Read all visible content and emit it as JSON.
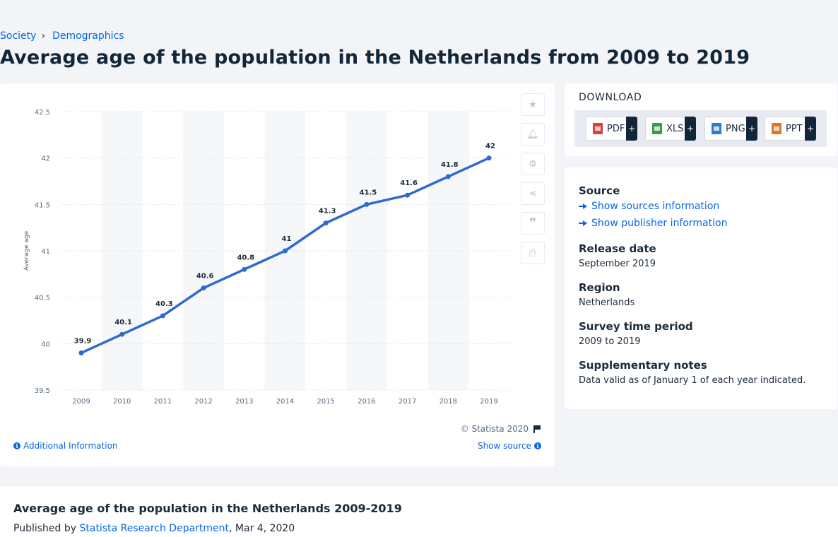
{
  "breadcrumb": {
    "items": [
      "Society",
      "Demographics"
    ],
    "separator": "›"
  },
  "page_title": "Average age of the population in the Netherlands from 2009 to 2019",
  "chart_data": {
    "type": "line",
    "title": "",
    "xlabel": "",
    "ylabel": "Average age",
    "x": [
      "2009",
      "2010",
      "2011",
      "2012",
      "2013",
      "2014",
      "2015",
      "2016",
      "2017",
      "2018",
      "2019"
    ],
    "series": [
      {
        "name": "",
        "values": [
          39.9,
          40.1,
          40.3,
          40.6,
          40.8,
          41,
          41.3,
          41.5,
          41.6,
          41.8,
          42
        ],
        "labels": [
          "39.9",
          "40.1",
          "40.3",
          "40.6",
          "40.8",
          "41",
          "41.3",
          "41.5",
          "41.6",
          "41.8",
          "42"
        ]
      }
    ],
    "ylim": [
      39.5,
      42.5
    ],
    "yticks": [
      39.5,
      40,
      40.5,
      41,
      41.5,
      42,
      42.5
    ],
    "ytick_labels": [
      "39.5",
      "40",
      "40.5",
      "41",
      "41.5",
      "42",
      "42.5"
    ],
    "grid": true,
    "legend": "none",
    "line_color": "#2f6ad0",
    "band_color": "#f6f7f9"
  },
  "chart_footer": {
    "copyright": "© Statista 2020",
    "additional_info": "Additional Information",
    "show_source": "Show source"
  },
  "tools": [
    "star-icon",
    "bell-icon",
    "gear-icon",
    "share-icon",
    "quote-icon",
    "print-icon"
  ],
  "download": {
    "title": "DOWNLOAD",
    "buttons": [
      {
        "label": "PDF",
        "color": "#d9413a"
      },
      {
        "label": "XLS",
        "color": "#3d9a45"
      },
      {
        "label": "PNG",
        "color": "#2c7dd1"
      },
      {
        "label": "PPT",
        "color": "#e0762b"
      }
    ],
    "plus": "+"
  },
  "info": {
    "source_heading": "Source",
    "sources_link": "Show sources information",
    "publisher_link": "Show publisher information",
    "release_heading": "Release date",
    "release_value": "September 2019",
    "region_heading": "Region",
    "region_value": "Netherlands",
    "survey_heading": "Survey time period",
    "survey_value": "2009 to 2019",
    "notes_heading": "Supplementary notes",
    "notes_value": "Data valid as of January 1 of each year indicated."
  },
  "publication": {
    "title": "Average age of the population in the Netherlands 2009-2019",
    "published_prefix": "Published by",
    "author": "Statista Research Department",
    "date": ", Mar 4, 2020"
  }
}
